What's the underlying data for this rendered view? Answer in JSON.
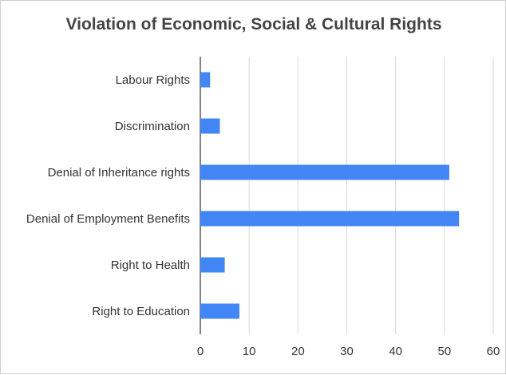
{
  "chart_data": {
    "type": "bar",
    "orientation": "horizontal",
    "title": "Violation of Economic, Social & Cultural Rights",
    "categories": [
      "Labour Rights",
      "Discrimination",
      "Denial of Inheritance rights",
      "Denial of Employment Benefits",
      "Right to Health",
      "Right to Education"
    ],
    "values": [
      2,
      4,
      51,
      53,
      5,
      8
    ],
    "xticks": [
      "0",
      "10",
      "20",
      "30",
      "40",
      "50",
      "60"
    ],
    "xlim": [
      0,
      60
    ],
    "grid": true,
    "legend": "none",
    "bar_color": "#4285f4",
    "grid_color": "#d9d9d9"
  }
}
